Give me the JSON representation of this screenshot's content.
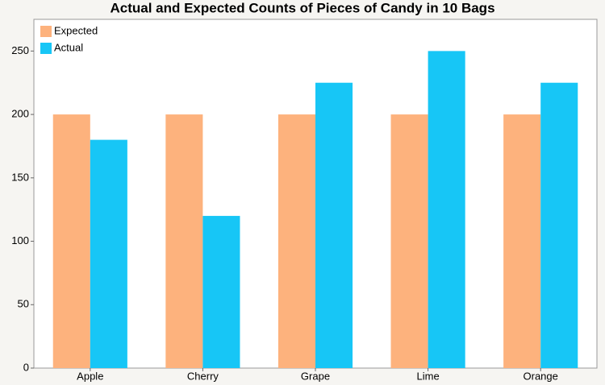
{
  "chart_data": {
    "type": "bar",
    "title": "Actual and Expected Counts of Pieces of Candy in 10 Bags",
    "categories": [
      "Apple",
      "Cherry",
      "Grape",
      "Lime",
      "Orange"
    ],
    "series": [
      {
        "name": "Expected",
        "color": "#fdb27d",
        "values": [
          200,
          200,
          200,
          200,
          200
        ]
      },
      {
        "name": "Actual",
        "color": "#17c6f6",
        "values": [
          180,
          120,
          225,
          250,
          225
        ]
      }
    ],
    "ylim": [
      0,
      275
    ],
    "yticks": [
      0,
      50,
      100,
      150,
      200,
      250
    ],
    "legend": "top-left"
  }
}
